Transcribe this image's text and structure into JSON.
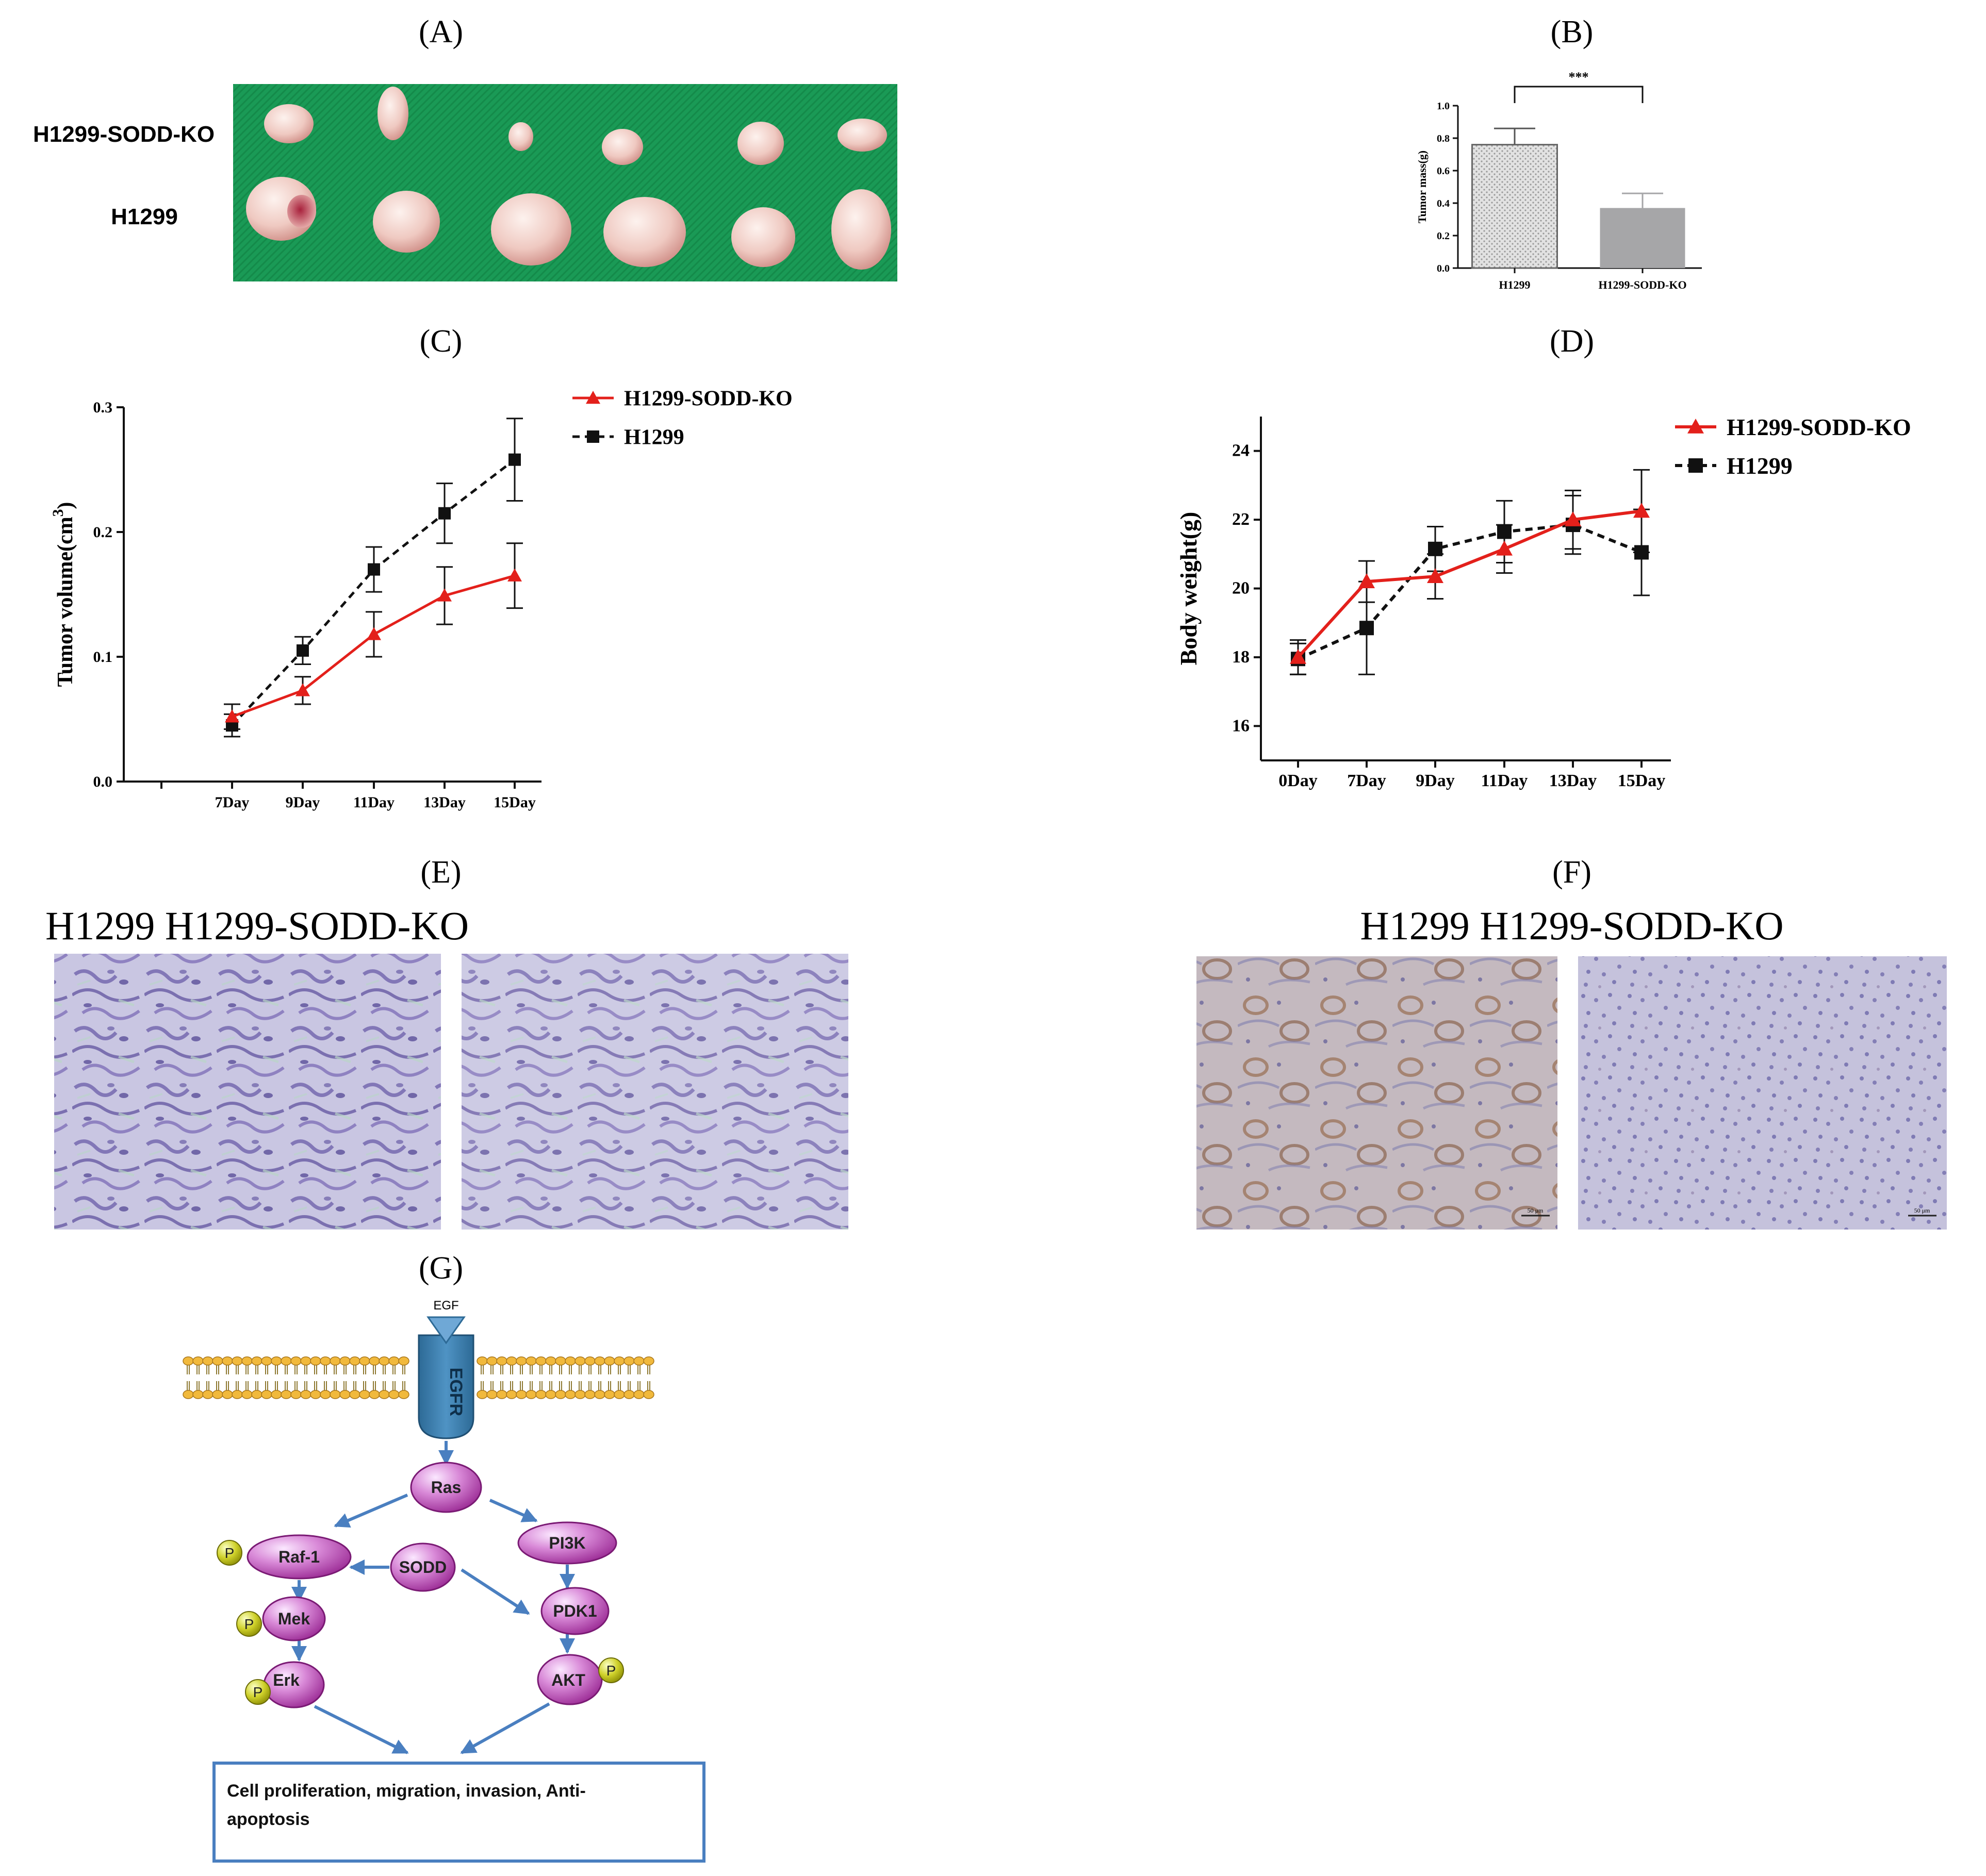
{
  "panel_labels": {
    "A": "(A)",
    "B": "(B)",
    "C": "(C)",
    "D": "(D)",
    "E": "(E)",
    "F": "(F)",
    "G": "(G)"
  },
  "panelA": {
    "row_labels": [
      "H1299-SODD-KO",
      "H1299"
    ],
    "background_color": "#1a9a56"
  },
  "panelE": {
    "caption": "H1299 H1299-SODD-KO"
  },
  "panelF": {
    "caption": "H1299 H1299-SODD-KO",
    "scale_bar": "50 μm"
  },
  "panelG": {
    "nodes": {
      "egf": "EGF",
      "egfr": "EGFR",
      "ras": "Ras",
      "raf1": "Raf-1",
      "pi3k": "PI3K",
      "sodd": "SODD",
      "mek": "Mek",
      "pdk1": "PDK1",
      "erk": "Erk",
      "akt": "AKT",
      "phospho": "P"
    },
    "outcome": [
      "Cell proliferation, migration, invasion, Anti-",
      "apoptosis"
    ]
  },
  "chart_data": [
    {
      "id": "B",
      "type": "bar",
      "categories": [
        "H1299",
        "H1299-SODD-KO"
      ],
      "values": [
        0.76,
        0.37
      ],
      "errors": [
        0.1,
        0.09
      ],
      "ylabel": "Tumor mass(g)",
      "ylim": [
        0.0,
        1.0
      ],
      "yticks": [
        "0.0",
        "0.2",
        "0.4",
        "0.6",
        "0.8",
        "1.0"
      ],
      "significance": "***",
      "colors": [
        "#d4d4d4",
        "#a6a6a8"
      ]
    },
    {
      "id": "C",
      "type": "line",
      "categories": [
        "7Day",
        "9Day",
        "11Day",
        "13Day",
        "15Day"
      ],
      "ylabel": "Tumor volume(cm",
      "ylabel_sup": "3",
      "ylabel_end": ")",
      "ylim": [
        0.0,
        0.3
      ],
      "yticks": [
        "0.0",
        "0.1",
        "0.2",
        "0.3"
      ],
      "legend_position": "top-right",
      "series": [
        {
          "name": "H1299-SODD-KO",
          "values": [
            0.052,
            0.073,
            0.118,
            0.149,
            0.165
          ],
          "errors": [
            0.01,
            0.011,
            0.018,
            0.023,
            0.026
          ],
          "color": "#e3201b",
          "marker": "triangle",
          "dash": "solid"
        },
        {
          "name": "H1299",
          "values": [
            0.045,
            0.105,
            0.17,
            0.215,
            0.258
          ],
          "errors": [
            0.009,
            0.011,
            0.018,
            0.024,
            0.033
          ],
          "color": "#111111",
          "marker": "square",
          "dash": "dashed"
        }
      ]
    },
    {
      "id": "D",
      "type": "line",
      "categories": [
        "0Day",
        "7Day",
        "9Day",
        "11Day",
        "13Day",
        "15Day"
      ],
      "ylabel": "Body weight(g)",
      "ylim": [
        15.0,
        25.0
      ],
      "yticks": [
        "16",
        "18",
        "20",
        "22",
        "24"
      ],
      "legend_position": "top-right",
      "series": [
        {
          "name": "H1299-SODD-KO",
          "values": [
            18.0,
            20.2,
            20.35,
            21.15,
            22.0,
            22.25
          ],
          "errors": [
            0.5,
            0.6,
            0.65,
            0.7,
            0.85,
            1.2
          ],
          "color": "#e3201b",
          "marker": "triangle",
          "dash": "solid"
        },
        {
          "name": "H1299",
          "values": [
            17.95,
            18.85,
            21.15,
            21.65,
            21.85,
            21.05
          ],
          "errors": [
            0.45,
            1.35,
            0.65,
            0.9,
            0.85,
            1.25
          ],
          "color": "#111111",
          "marker": "square",
          "dash": "dashed"
        }
      ]
    }
  ]
}
